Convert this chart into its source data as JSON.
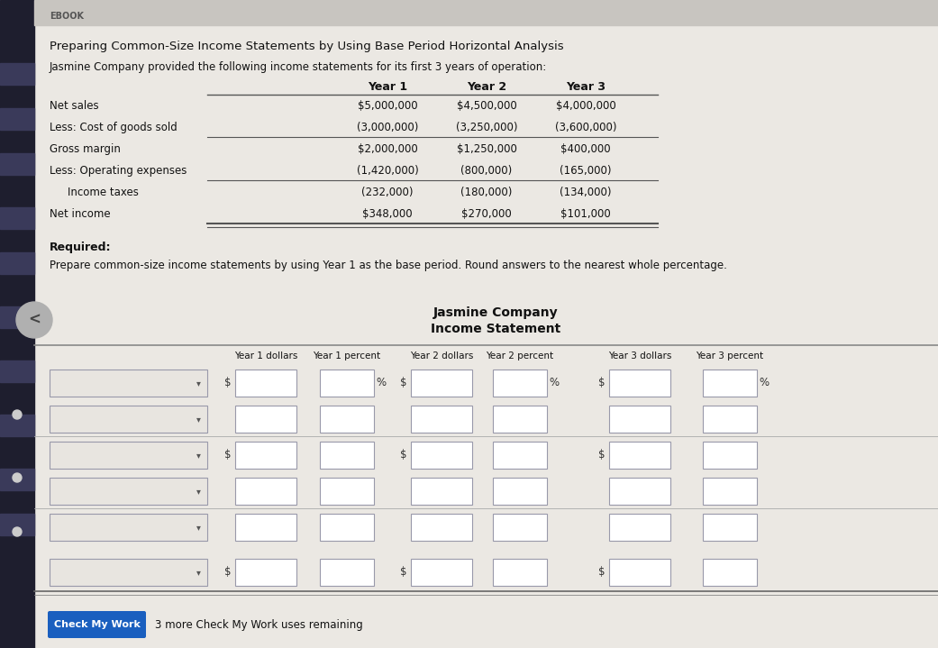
{
  "title_main": "Preparing Common-Size Income Statements by Using Base Period Horizontal Analysis",
  "subtitle": "Jasmine Company provided the following income statements for its first 3 years of operation:",
  "table1_headers": [
    "Year 1",
    "Year 2",
    "Year 3"
  ],
  "table1_rows": [
    [
      "Net sales",
      "$5,000,000",
      "$4,500,000",
      "$4,000,000"
    ],
    [
      "Less: Cost of goods sold",
      "(3,000,000)",
      "(3,250,000)",
      "(3,600,000)"
    ],
    [
      "Gross margin",
      "$2,000,000",
      "$1,250,000",
      "$400,000"
    ],
    [
      "Less: Operating expenses",
      "(1,420,000)",
      "(800,000)",
      "(165,000)"
    ],
    [
      "Income taxes",
      "(232,000)",
      "(180,000)",
      "(134,000)"
    ],
    [
      "Net income",
      "$348,000",
      "$270,000",
      "$101,000"
    ]
  ],
  "required_label": "Required:",
  "instruction": "Prepare common-size income statements by using Year 1 as the base period. Round answers to the nearest whole percentage.",
  "company_name": "Jasmine Company",
  "statement_type": "Income Statement",
  "table2_col_headers": [
    "Year 1 dollars",
    "Year 1 percent",
    "Year 2 dollars",
    "Year 2 percent",
    "Year 3 dollars",
    "Year 3 percent"
  ],
  "num_input_rows": 6,
  "check_button_text": "Check My Work",
  "check_button_note": "3 more Check My Work uses remaining",
  "content_bg": "#ebe8e3",
  "left_sidebar_color": "#2a2a3a",
  "stripe_colors": [
    "#3a3a4a",
    "#1a1a2a"
  ],
  "input_box_color": "#ffffff",
  "input_box_border": "#9999aa",
  "dropdown_bg": "#e8e5e0",
  "button_color": "#1a5fbf",
  "button_text_color": "#ffffff",
  "dollar_sign_rows": [
    0,
    2,
    5
  ],
  "top_bar_color": "#c8c5c0",
  "ebook_color": "#555555",
  "text_color": "#111111",
  "line_color": "#555555"
}
